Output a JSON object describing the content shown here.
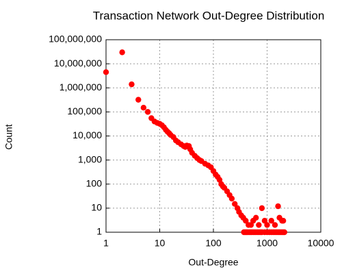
{
  "chart_data": {
    "type": "scatter",
    "title": "Transaction Network Out-Degree Distribution",
    "x_label": "Out-Degree",
    "y_label": "Count",
    "xscale": "log",
    "yscale": "log",
    "grid": true,
    "color": "#ff0000",
    "xlim": [
      1,
      10000
    ],
    "xticks": [
      1,
      10,
      100,
      1000,
      10000
    ],
    "ylim": [
      1,
      100000000
    ],
    "yticks": [
      {
        "value": 1,
        "label": "1"
      },
      {
        "value": 10,
        "label": "10"
      },
      {
        "value": 100,
        "label": "100"
      },
      {
        "value": 1000,
        "label": "1,000"
      },
      {
        "value": 10000,
        "label": "10,000"
      },
      {
        "value": 100000,
        "label": "100,000"
      },
      {
        "value": 1000000,
        "label": "1,000,000"
      },
      {
        "value": 10000000,
        "label": "10,000,000"
      },
      {
        "value": 100000000,
        "label": "100,000,000"
      }
    ],
    "x": [
      1,
      2,
      3,
      4,
      5,
      6,
      7,
      8,
      9,
      10,
      11,
      12,
      13,
      14,
      15,
      16,
      18,
      20,
      22,
      25,
      28,
      30,
      32,
      35,
      37,
      40,
      45,
      50,
      55,
      60,
      70,
      80,
      90,
      100,
      110,
      120,
      130,
      140,
      150,
      160,
      180,
      200,
      220,
      250,
      280,
      300,
      330,
      360,
      400,
      450,
      500,
      550,
      620,
      700,
      800,
      900,
      1000,
      1200,
      1400,
      1600,
      1700,
      1900,
      2000,
      370,
      390,
      410,
      430,
      460,
      490,
      520,
      560,
      600,
      650,
      700,
      750,
      800,
      900,
      1000,
      1100,
      1200,
      1300,
      1400,
      1500,
      1600,
      1700,
      1800,
      1900,
      2000,
      2100
    ],
    "y": [
      4500000,
      30000000,
      1400000,
      320000,
      150000,
      100000,
      55000,
      40000,
      35000,
      32000,
      28000,
      23000,
      18000,
      15000,
      13000,
      11000,
      9000,
      6500,
      5500,
      4500,
      3800,
      3500,
      4000,
      3800,
      2800,
      2000,
      1500,
      1200,
      1000,
      900,
      700,
      600,
      500,
      350,
      250,
      200,
      150,
      100,
      80,
      70,
      50,
      35,
      25,
      15,
      10,
      7,
      5,
      4,
      3,
      2,
      2,
      3,
      4,
      2,
      10,
      3,
      2,
      3,
      2,
      12,
      4,
      3,
      3,
      1,
      1,
      1,
      1,
      1,
      1,
      1,
      1,
      1,
      1,
      1,
      1,
      1,
      1,
      1,
      1,
      1,
      1,
      1,
      1,
      1,
      1,
      1,
      1,
      1,
      1
    ]
  }
}
